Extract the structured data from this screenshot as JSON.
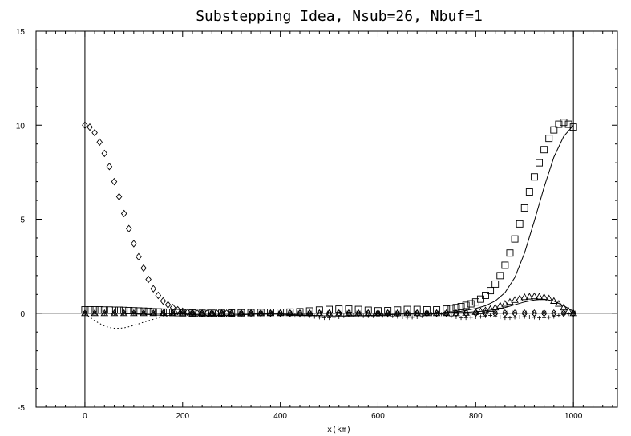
{
  "chart_data": {
    "type": "line",
    "title": "Substepping Idea, Nsub=26, Nbuf=1",
    "xlabel": "x(km)",
    "ylabel": "",
    "xlim": [
      -100,
      1090
    ],
    "ylim": [
      -5,
      15
    ],
    "x_ticks": [
      0,
      200,
      400,
      600,
      800,
      1000
    ],
    "y_ticks": [
      -5,
      0,
      5,
      10,
      15
    ],
    "x_tick_labels": [
      "0",
      "200",
      "400",
      "600",
      "800",
      "1000"
    ],
    "y_tick_labels": [
      "-5",
      "0",
      "5",
      "10",
      "15"
    ],
    "grid": false,
    "reference_lines": {
      "x": [
        0,
        1000
      ],
      "y": [
        0
      ]
    },
    "series": [
      {
        "marker": "diamond",
        "x": [
          0,
          10,
          20,
          30,
          40,
          50,
          60,
          70,
          80,
          90,
          100,
          110,
          120,
          130,
          140,
          150,
          160,
          170,
          180,
          190,
          200,
          210,
          220,
          230,
          240,
          250,
          260,
          270,
          280,
          290,
          300,
          320,
          340,
          360,
          380,
          400,
          420,
          440,
          460,
          480,
          500,
          520,
          540,
          560,
          580,
          600,
          620,
          640,
          660,
          680,
          700,
          720,
          740,
          760,
          780,
          800,
          820,
          840,
          860,
          880,
          900,
          920,
          940,
          960,
          980,
          1000
        ],
        "y": [
          10.0,
          9.9,
          9.6,
          9.1,
          8.5,
          7.8,
          7.0,
          6.2,
          5.3,
          4.5,
          3.7,
          3.0,
          2.4,
          1.8,
          1.3,
          0.95,
          0.65,
          0.45,
          0.3,
          0.18,
          0.1,
          0.05,
          0.02,
          0.0,
          0.0,
          0.0,
          0.0,
          0.0,
          0.0,
          0.0,
          0.0,
          0.0,
          0.0,
          0.0,
          0.0,
          0.0,
          0.0,
          0.0,
          0.0,
          0.0,
          0.0,
          0.0,
          0.0,
          0.0,
          0.0,
          0.0,
          0.0,
          0.0,
          0.0,
          0.0,
          0.0,
          0.0,
          0.0,
          0.0,
          0.0,
          0.0,
          0.0,
          0.0,
          0.0,
          0.0,
          0.0,
          0.0,
          0.0,
          0.0,
          0.0,
          0.0
        ]
      },
      {
        "marker": "square",
        "x": [
          0,
          10,
          20,
          30,
          40,
          50,
          60,
          70,
          80,
          90,
          100,
          110,
          120,
          130,
          140,
          150,
          160,
          170,
          180,
          190,
          200,
          220,
          240,
          260,
          280,
          300,
          320,
          340,
          360,
          380,
          400,
          420,
          440,
          460,
          480,
          500,
          520,
          540,
          560,
          580,
          600,
          620,
          640,
          660,
          680,
          700,
          720,
          740,
          750,
          760,
          770,
          780,
          790,
          800,
          810,
          820,
          830,
          840,
          850,
          860,
          870,
          880,
          890,
          900,
          910,
          920,
          930,
          940,
          950,
          960,
          970,
          980,
          990,
          1000
        ],
        "y": [
          0.18,
          0.18,
          0.18,
          0.18,
          0.17,
          0.17,
          0.16,
          0.16,
          0.15,
          0.14,
          0.13,
          0.12,
          0.11,
          0.1,
          0.08,
          0.07,
          0.06,
          0.05,
          0.04,
          0.03,
          0.02,
          0.01,
          0.0,
          0.0,
          0.0,
          0.01,
          0.02,
          0.03,
          0.04,
          0.05,
          0.05,
          0.06,
          0.08,
          0.12,
          0.17,
          0.2,
          0.22,
          0.22,
          0.2,
          0.16,
          0.13,
          0.14,
          0.17,
          0.2,
          0.2,
          0.18,
          0.18,
          0.22,
          0.25,
          0.3,
          0.35,
          0.42,
          0.5,
          0.6,
          0.75,
          0.95,
          1.2,
          1.55,
          2.0,
          2.55,
          3.2,
          3.95,
          4.75,
          5.6,
          6.45,
          7.25,
          8.0,
          8.7,
          9.3,
          9.75,
          10.05,
          10.15,
          10.05,
          9.9
        ]
      },
      {
        "marker": "triangle",
        "x": [
          0,
          20,
          40,
          60,
          80,
          100,
          120,
          140,
          160,
          180,
          200,
          220,
          240,
          260,
          280,
          300,
          320,
          340,
          360,
          380,
          400,
          420,
          440,
          460,
          480,
          500,
          520,
          540,
          560,
          580,
          600,
          620,
          640,
          660,
          680,
          700,
          720,
          740,
          760,
          780,
          800,
          810,
          820,
          830,
          840,
          850,
          860,
          870,
          880,
          890,
          900,
          910,
          920,
          930,
          940,
          950,
          960,
          970,
          980,
          990,
          1000
        ],
        "y": [
          0.0,
          0.0,
          0.0,
          0.0,
          0.0,
          0.0,
          0.0,
          0.0,
          0.0,
          0.0,
          0.0,
          0.0,
          0.0,
          0.0,
          0.0,
          0.0,
          0.0,
          0.0,
          0.0,
          0.0,
          0.0,
          0.0,
          0.0,
          0.0,
          0.0,
          0.0,
          0.0,
          0.0,
          0.0,
          0.0,
          0.0,
          0.0,
          0.0,
          0.0,
          0.0,
          0.0,
          0.0,
          0.0,
          0.0,
          0.02,
          0.06,
          0.1,
          0.15,
          0.22,
          0.3,
          0.4,
          0.5,
          0.6,
          0.7,
          0.78,
          0.85,
          0.88,
          0.9,
          0.88,
          0.85,
          0.78,
          0.65,
          0.5,
          0.3,
          0.12,
          0.0
        ]
      },
      {
        "marker": "plus",
        "x": [
          0,
          20,
          40,
          60,
          80,
          100,
          120,
          140,
          160,
          180,
          200,
          220,
          240,
          260,
          280,
          300,
          320,
          340,
          360,
          380,
          400,
          410,
          420,
          430,
          440,
          450,
          460,
          470,
          480,
          490,
          500,
          510,
          520,
          530,
          540,
          550,
          560,
          570,
          580,
          590,
          600,
          610,
          620,
          630,
          640,
          650,
          660,
          670,
          680,
          690,
          700,
          710,
          720,
          730,
          740,
          750,
          760,
          770,
          780,
          790,
          800,
          810,
          820,
          830,
          840,
          850,
          860,
          870,
          880,
          890,
          900,
          910,
          920,
          930,
          940,
          950,
          960,
          970,
          980,
          990,
          1000
        ],
        "y": [
          0.0,
          0.0,
          0.0,
          0.0,
          0.0,
          0.0,
          0.0,
          0.0,
          0.0,
          0.0,
          0.0,
          0.0,
          0.0,
          0.0,
          0.0,
          0.0,
          0.0,
          0.0,
          0.0,
          0.0,
          -0.05,
          -0.1,
          -0.1,
          -0.12,
          -0.12,
          -0.13,
          -0.15,
          -0.18,
          -0.22,
          -0.25,
          -0.25,
          -0.22,
          -0.2,
          -0.15,
          -0.1,
          -0.1,
          -0.12,
          -0.15,
          -0.15,
          -0.15,
          -0.15,
          -0.13,
          -0.12,
          -0.15,
          -0.18,
          -0.2,
          -0.22,
          -0.22,
          -0.2,
          -0.15,
          -0.1,
          -0.05,
          -0.02,
          -0.05,
          -0.1,
          -0.15,
          -0.2,
          -0.25,
          -0.25,
          -0.22,
          -0.2,
          -0.18,
          -0.15,
          -0.12,
          -0.15,
          -0.2,
          -0.25,
          -0.25,
          -0.22,
          -0.2,
          -0.18,
          -0.2,
          -0.22,
          -0.25,
          -0.25,
          -0.22,
          -0.18,
          -0.12,
          -0.08,
          -0.04,
          -0.02
        ]
      },
      {
        "marker": "x",
        "x": [
          0,
          20,
          40,
          60,
          80,
          100,
          120,
          140,
          160,
          180,
          200,
          220,
          240,
          260,
          280,
          300,
          320,
          340,
          360,
          380,
          400,
          420,
          440,
          460,
          480,
          500,
          520,
          540,
          560,
          580,
          600,
          620,
          640,
          660,
          680,
          700,
          720,
          740,
          760,
          780,
          800,
          820,
          840,
          860,
          880,
          900,
          920,
          940,
          960,
          980,
          1000
        ],
        "y": [
          0.02,
          0.02,
          0.02,
          0.02,
          0.02,
          0.02,
          0.02,
          0.02,
          0.02,
          0.02,
          0.02,
          0.02,
          0.02,
          0.02,
          0.02,
          0.02,
          0.02,
          0.02,
          0.02,
          0.02,
          0.02,
          0.02,
          0.02,
          0.02,
          0.02,
          0.02,
          0.02,
          0.02,
          0.02,
          0.02,
          0.02,
          0.02,
          0.02,
          0.02,
          0.02,
          0.02,
          0.02,
          0.02,
          0.02,
          0.02,
          0.02,
          0.02,
          0.02,
          0.02,
          0.02,
          0.02,
          0.02,
          0.02,
          0.02,
          0.02,
          0.02
        ]
      },
      {
        "line": "solid",
        "x": [
          0,
          50,
          100,
          150,
          200,
          250,
          300,
          350,
          400,
          450,
          500,
          550,
          600,
          650,
          700,
          740,
          770,
          800,
          820,
          840,
          860,
          880,
          900,
          920,
          940,
          960,
          980,
          1000
        ],
        "y": [
          0.0,
          0.0,
          0.0,
          0.0,
          -0.05,
          -0.1,
          -0.1,
          -0.05,
          -0.05,
          -0.1,
          -0.15,
          -0.15,
          -0.1,
          -0.05,
          -0.05,
          0.0,
          0.1,
          0.25,
          0.4,
          0.65,
          1.1,
          1.9,
          3.2,
          4.9,
          6.7,
          8.3,
          9.4,
          10.0
        ]
      },
      {
        "line": "solid",
        "x": [
          0,
          100,
          200,
          300,
          400,
          500,
          600,
          700,
          750,
          780,
          800,
          820,
          840,
          860,
          880,
          900,
          920,
          940,
          960,
          980,
          1000
        ],
        "y": [
          0.0,
          0.0,
          0.0,
          0.0,
          0.0,
          0.0,
          0.0,
          0.0,
          0.02,
          0.05,
          0.08,
          0.12,
          0.2,
          0.3,
          0.45,
          0.6,
          0.7,
          0.75,
          0.65,
          0.4,
          0.1
        ]
      },
      {
        "line": "dotted",
        "x": [
          0,
          10,
          20,
          30,
          40,
          50,
          60,
          70,
          80,
          90,
          100,
          110,
          120,
          130,
          140,
          150,
          160,
          170,
          180,
          190,
          200,
          220,
          240
        ],
        "y": [
          -0.05,
          -0.2,
          -0.4,
          -0.55,
          -0.68,
          -0.76,
          -0.8,
          -0.8,
          -0.78,
          -0.72,
          -0.65,
          -0.57,
          -0.48,
          -0.4,
          -0.32,
          -0.25,
          -0.19,
          -0.14,
          -0.1,
          -0.07,
          -0.05,
          -0.02,
          0.0
        ]
      }
    ]
  }
}
